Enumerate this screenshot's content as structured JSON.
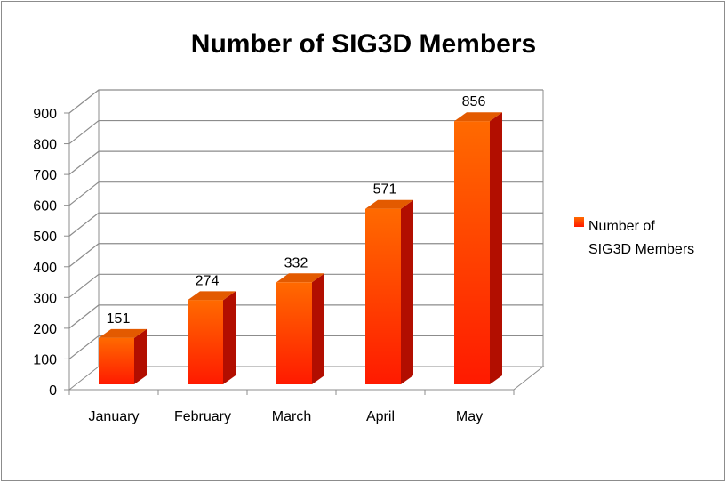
{
  "chart_data": {
    "type": "bar",
    "title": "Number of SIG3D Members",
    "xlabel": "",
    "ylabel": "",
    "categories": [
      "January",
      "February",
      "March",
      "April",
      "May"
    ],
    "series": [
      {
        "name": "Number of SIG3D Members",
        "values": [
          151,
          274,
          332,
          571,
          856
        ]
      }
    ],
    "data_labels": [
      "151",
      "274",
      "332",
      "571",
      "856"
    ],
    "ylim": [
      0,
      900
    ],
    "yticks": [
      "0",
      "100",
      "200",
      "300",
      "400",
      "500",
      "600",
      "700",
      "800",
      "900"
    ],
    "grid": true,
    "legend_position": "right",
    "legend_lines": [
      "Number of",
      "SIG3D Members"
    ],
    "bar_color_top": "#ff6a00",
    "bar_color_bottom": "#ff1a00",
    "bar_side_color": "#b20e00",
    "bar_cap_color": "#e35a00"
  }
}
